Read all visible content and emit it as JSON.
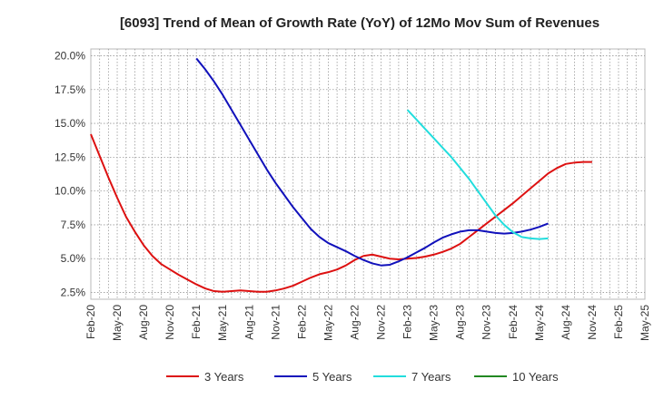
{
  "chart_data": {
    "type": "line",
    "title": "[6093]  Trend of Mean of Growth Rate (YoY) of 12Mo Mov Sum of Revenues",
    "xlabel": "",
    "ylabel": "",
    "ylim": [
      2.0,
      20.5
    ],
    "y_ticks": [
      2.5,
      5.0,
      7.5,
      10.0,
      12.5,
      15.0,
      17.5,
      20.0
    ],
    "y_tick_labels": [
      "2.5%",
      "5.0%",
      "7.5%",
      "10.0%",
      "12.5%",
      "15.0%",
      "17.5%",
      "20.0%"
    ],
    "x_tick_labels": [
      "Feb-20",
      "May-20",
      "Aug-20",
      "Nov-20",
      "Feb-21",
      "May-21",
      "Aug-21",
      "Nov-21",
      "Feb-22",
      "May-22",
      "Aug-22",
      "Nov-22",
      "Feb-23",
      "May-23",
      "Aug-23",
      "Nov-23",
      "Feb-24",
      "May-24",
      "Aug-24",
      "Nov-24",
      "Feb-25",
      "May-25"
    ],
    "x_unit": "months since Feb-20",
    "grid": true,
    "legend_position": "bottom",
    "series": [
      {
        "name": "3 Years",
        "color": "#dd1111",
        "points": [
          [
            0,
            14.2
          ],
          [
            1,
            12.6
          ],
          [
            2,
            11.0
          ],
          [
            3,
            9.5
          ],
          [
            4,
            8.1
          ],
          [
            5,
            7.0
          ],
          [
            6,
            6.0
          ],
          [
            7,
            5.2
          ],
          [
            8,
            4.6
          ],
          [
            9,
            4.2
          ],
          [
            10,
            3.8
          ],
          [
            11,
            3.45
          ],
          [
            12,
            3.1
          ],
          [
            13,
            2.8
          ],
          [
            14,
            2.6
          ],
          [
            15,
            2.55
          ],
          [
            16,
            2.6
          ],
          [
            17,
            2.65
          ],
          [
            18,
            2.6
          ],
          [
            19,
            2.55
          ],
          [
            20,
            2.55
          ],
          [
            21,
            2.65
          ],
          [
            22,
            2.8
          ],
          [
            23,
            3.0
          ],
          [
            24,
            3.3
          ],
          [
            25,
            3.6
          ],
          [
            26,
            3.85
          ],
          [
            27,
            4.0
          ],
          [
            28,
            4.2
          ],
          [
            29,
            4.5
          ],
          [
            30,
            4.9
          ],
          [
            31,
            5.2
          ],
          [
            32,
            5.3
          ],
          [
            33,
            5.15
          ],
          [
            34,
            5.0
          ],
          [
            35,
            4.95
          ],
          [
            36,
            5.0
          ],
          [
            37,
            5.05
          ],
          [
            38,
            5.15
          ],
          [
            39,
            5.3
          ],
          [
            40,
            5.5
          ],
          [
            41,
            5.75
          ],
          [
            42,
            6.1
          ],
          [
            43,
            6.6
          ],
          [
            44,
            7.1
          ],
          [
            45,
            7.6
          ],
          [
            46,
            8.1
          ],
          [
            47,
            8.6
          ],
          [
            48,
            9.1
          ],
          [
            49,
            9.65
          ],
          [
            50,
            10.2
          ],
          [
            51,
            10.75
          ],
          [
            52,
            11.3
          ],
          [
            53,
            11.7
          ],
          [
            54,
            12.0
          ],
          [
            55,
            12.1
          ],
          [
            56,
            12.15
          ],
          [
            57,
            12.15
          ]
        ]
      },
      {
        "name": "5 Years",
        "color": "#1111bb",
        "points": [
          [
            12,
            19.8
          ],
          [
            13,
            19.0
          ],
          [
            14,
            18.1
          ],
          [
            15,
            17.1
          ],
          [
            16,
            16.0
          ],
          [
            17,
            14.9
          ],
          [
            18,
            13.8
          ],
          [
            19,
            12.7
          ],
          [
            20,
            11.6
          ],
          [
            21,
            10.6
          ],
          [
            22,
            9.7
          ],
          [
            23,
            8.8
          ],
          [
            24,
            8.0
          ],
          [
            25,
            7.2
          ],
          [
            26,
            6.6
          ],
          [
            27,
            6.15
          ],
          [
            28,
            5.85
          ],
          [
            29,
            5.55
          ],
          [
            30,
            5.2
          ],
          [
            31,
            4.9
          ],
          [
            32,
            4.65
          ],
          [
            33,
            4.5
          ],
          [
            34,
            4.55
          ],
          [
            35,
            4.8
          ],
          [
            36,
            5.1
          ],
          [
            37,
            5.45
          ],
          [
            38,
            5.8
          ],
          [
            39,
            6.2
          ],
          [
            40,
            6.55
          ],
          [
            41,
            6.8
          ],
          [
            42,
            7.0
          ],
          [
            43,
            7.1
          ],
          [
            44,
            7.1
          ],
          [
            45,
            7.0
          ],
          [
            46,
            6.9
          ],
          [
            47,
            6.85
          ],
          [
            48,
            6.9
          ],
          [
            49,
            7.0
          ],
          [
            50,
            7.15
          ],
          [
            51,
            7.35
          ],
          [
            52,
            7.6
          ]
        ]
      },
      {
        "name": "7 Years",
        "color": "#22dddd",
        "points": [
          [
            36,
            16.0
          ],
          [
            37,
            15.3
          ],
          [
            38,
            14.6
          ],
          [
            39,
            13.9
          ],
          [
            40,
            13.2
          ],
          [
            41,
            12.5
          ],
          [
            42,
            11.7
          ],
          [
            43,
            10.9
          ],
          [
            44,
            10.0
          ],
          [
            45,
            9.1
          ],
          [
            46,
            8.2
          ],
          [
            47,
            7.5
          ],
          [
            48,
            6.95
          ],
          [
            49,
            6.6
          ],
          [
            50,
            6.5
          ],
          [
            51,
            6.45
          ],
          [
            52,
            6.5
          ]
        ]
      },
      {
        "name": "10 Years",
        "color": "#228822",
        "points": []
      }
    ]
  }
}
